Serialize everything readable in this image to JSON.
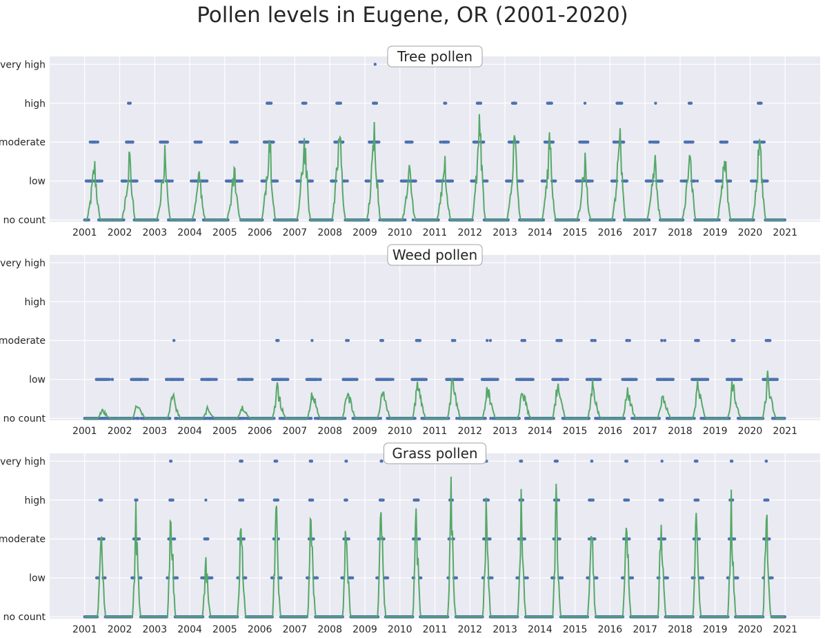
{
  "title": "Pollen levels in Eugene, OR (2001-2020)",
  "colors": {
    "background": "#eaeaf2",
    "grid": "#ffffff",
    "points": "#4c72b0",
    "line": "#55a868",
    "text": "#262626"
  },
  "chart_data": [
    {
      "type": "scatter",
      "title": "Tree pollen",
      "x_ticks": [
        "2001",
        "2002",
        "2003",
        "2004",
        "2005",
        "2006",
        "2007",
        "2008",
        "2009",
        "2010",
        "2011",
        "2012",
        "2013",
        "2014",
        "2015",
        "2016",
        "2017",
        "2018",
        "2019",
        "2020",
        "2021"
      ],
      "y_ticks": [
        "no count",
        "low",
        "moderate",
        "high",
        "very high"
      ],
      "xlim": [
        2000.0,
        2022.0
      ],
      "ylim": [
        -0.05,
        4.2
      ],
      "grid": true,
      "season": {
        "start": 0.05,
        "peak": 0.28,
        "end": 0.45
      },
      "yearly_peak_level": [
        1.8,
        2.1,
        2.1,
        1.5,
        1.6,
        2.9,
        2.7,
        2.9,
        3.0,
        1.6,
        2.0,
        3.0,
        2.7,
        2.7,
        1.9,
        2.6,
        1.9,
        2.3,
        2.0,
        2.6
      ]
    },
    {
      "type": "scatter",
      "title": "Weed pollen",
      "x_ticks": [
        "2001",
        "2002",
        "2003",
        "2004",
        "2005",
        "2006",
        "2007",
        "2008",
        "2009",
        "2010",
        "2011",
        "2012",
        "2013",
        "2014",
        "2015",
        "2016",
        "2017",
        "2018",
        "2019",
        "2020",
        "2021"
      ],
      "y_ticks": [
        "no count",
        "low",
        "moderate",
        "high",
        "very high"
      ],
      "xlim": [
        2000.0,
        2022.0
      ],
      "ylim": [
        -0.05,
        4.2
      ],
      "grid": true,
      "season": {
        "start": 0.35,
        "peak": 0.5,
        "end": 0.75
      },
      "yearly_peak_level": [
        0.3,
        0.5,
        0.8,
        0.3,
        0.4,
        1.0,
        0.9,
        1.0,
        1.0,
        1.2,
        1.3,
        1.0,
        1.0,
        1.2,
        1.0,
        1.0,
        0.9,
        1.1,
        1.2,
        1.3
      ]
    },
    {
      "type": "scatter",
      "title": "Grass pollen",
      "x_ticks": [
        "2001",
        "2002",
        "2003",
        "2004",
        "2005",
        "2006",
        "2007",
        "2008",
        "2009",
        "2010",
        "2011",
        "2012",
        "2013",
        "2014",
        "2015",
        "2016",
        "2017",
        "2018",
        "2019",
        "2020",
        "2021"
      ],
      "y_ticks": [
        "no count",
        "low",
        "moderate",
        "high",
        "very high"
      ],
      "xlim": [
        2000.0,
        2022.0
      ],
      "ylim": [
        -0.05,
        4.2
      ],
      "grid": true,
      "season": {
        "start": 0.36,
        "peak": 0.46,
        "end": 0.6
      },
      "yearly_peak_level": [
        3.0,
        3.2,
        3.7,
        2.0,
        3.4,
        3.8,
        3.4,
        3.2,
        3.5,
        3.5,
        3.7,
        3.5,
        3.6,
        3.9,
        3.8,
        3.7,
        3.4,
        3.6,
        3.5,
        3.6
      ]
    }
  ]
}
